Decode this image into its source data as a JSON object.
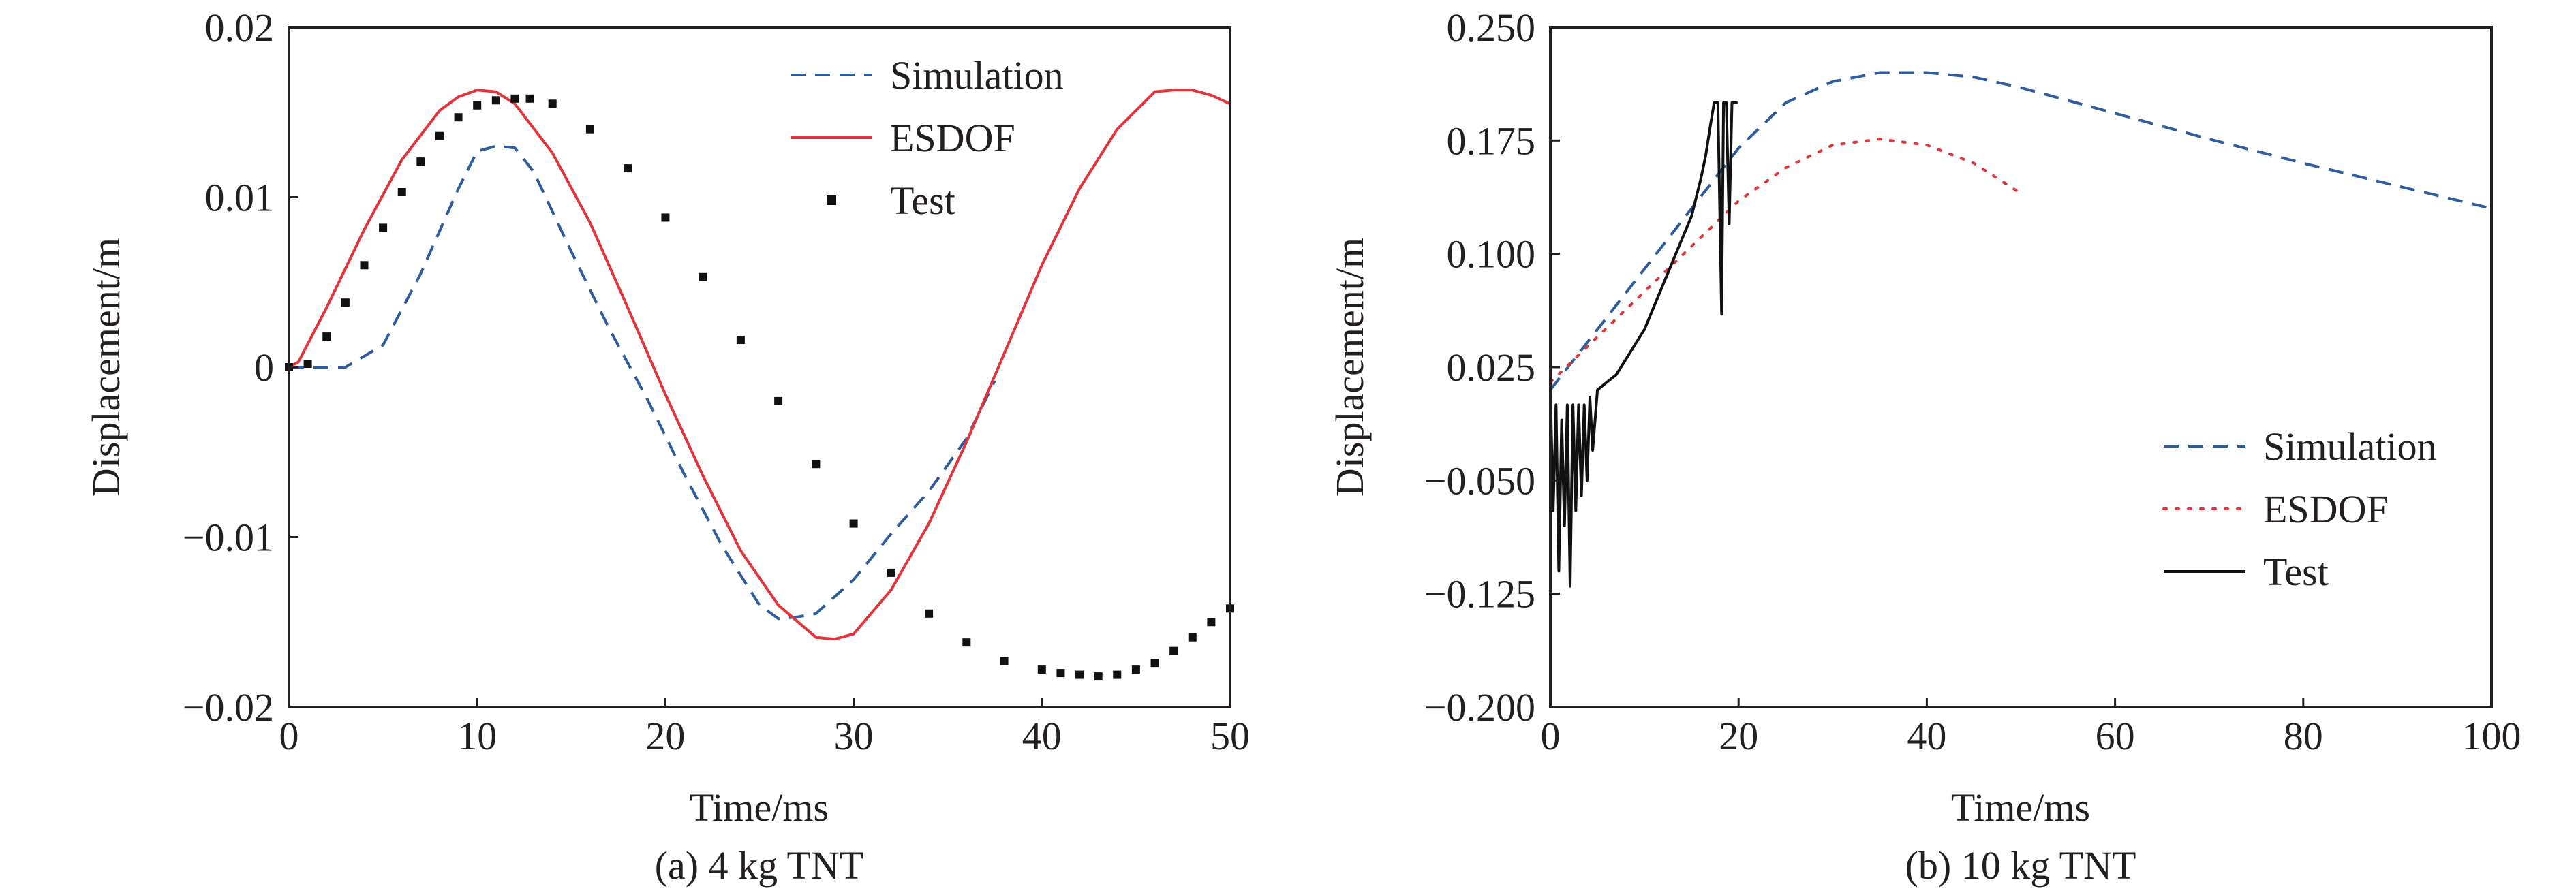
{
  "chart_data": [
    {
      "type": "line",
      "caption": "(a) 4 kg TNT",
      "xlabel": "Time/ms",
      "ylabel": "Displacement/m",
      "xlim": [
        0,
        50
      ],
      "ylim": [
        -0.02,
        0.02
      ],
      "xticks": [
        0,
        10,
        20,
        30,
        40,
        50
      ],
      "yticks": [
        -0.02,
        -0.01,
        0,
        0.01,
        0.02
      ],
      "xtick_labels": [
        "0",
        "10",
        "20",
        "30",
        "40",
        "50"
      ],
      "ytick_labels": [
        "−0.02",
        "−0.01",
        "0",
        "0.01",
        "0.02"
      ],
      "grid": false,
      "legend_position": "top-right",
      "series": [
        {
          "name": "Simulation",
          "style": "dashed",
          "color": "#2e5c9e",
          "x": [
            0,
            3,
            5,
            7,
            9,
            10,
            11,
            12,
            13,
            15,
            17,
            19,
            21,
            23,
            25,
            26,
            27,
            28,
            30,
            32,
            34,
            36,
            37.5
          ],
          "y": [
            0,
            0,
            0.0013,
            0.0055,
            0.0105,
            0.0127,
            0.013,
            0.0129,
            0.0115,
            0.0068,
            0.0023,
            -0.0018,
            -0.0063,
            -0.0105,
            -0.014,
            -0.0148,
            -0.0147,
            -0.0145,
            -0.0125,
            -0.0098,
            -0.0073,
            -0.0042,
            -0.0008
          ]
        },
        {
          "name": "ESDOF",
          "style": "solid",
          "color": "#e2343a",
          "x": [
            0,
            0.5,
            2,
            4,
            6,
            8,
            9,
            10,
            11,
            12,
            14,
            16,
            18,
            20,
            22,
            24,
            26,
            28,
            29,
            30,
            32,
            34,
            36,
            38,
            40,
            42,
            44,
            46,
            47,
            48,
            49,
            50
          ],
          "y": [
            0,
            0.0003,
            0.0035,
            0.0081,
            0.0122,
            0.0151,
            0.0159,
            0.0163,
            0.0162,
            0.0155,
            0.0126,
            0.0085,
            0.0035,
            -0.0016,
            -0.0064,
            -0.0108,
            -0.014,
            -0.0159,
            -0.016,
            -0.0157,
            -0.0131,
            -0.0092,
            -0.0044,
            0.0008,
            0.006,
            0.0105,
            0.014,
            0.0162,
            0.0163,
            0.0163,
            0.016,
            0.0155
          ]
        },
        {
          "name": "Test",
          "style": "markers",
          "color": "#111111",
          "x": [
            0,
            1,
            2,
            3,
            4,
            5,
            6,
            7,
            8,
            9,
            10,
            11,
            12,
            12.8,
            14,
            16,
            18,
            20,
            22,
            24,
            26,
            28,
            30,
            32,
            34,
            36,
            38,
            40,
            41,
            42,
            43,
            44,
            45,
            46,
            47,
            48,
            49,
            50
          ],
          "y": [
            0,
            0.0002,
            0.0018,
            0.0038,
            0.006,
            0.0082,
            0.0103,
            0.0121,
            0.0136,
            0.0147,
            0.0154,
            0.0157,
            0.0158,
            0.0158,
            0.0155,
            0.014,
            0.0117,
            0.0088,
            0.0053,
            0.0016,
            -0.002,
            -0.0057,
            -0.0092,
            -0.0121,
            -0.0145,
            -0.0162,
            -0.0173,
            -0.0178,
            -0.018,
            -0.0181,
            -0.0182,
            -0.0181,
            -0.0178,
            -0.0174,
            -0.0167,
            -0.0159,
            -0.015,
            -0.0142
          ]
        }
      ]
    },
    {
      "type": "line",
      "caption": "(b) 10 kg TNT",
      "xlabel": "Time/ms",
      "ylabel": "Displacement/m",
      "xlim": [
        0,
        100
      ],
      "ylim": [
        -0.2,
        0.25
      ],
      "xticks": [
        0,
        20,
        40,
        60,
        80,
        100
      ],
      "yticks": [
        -0.2,
        -0.125,
        -0.05,
        0.025,
        0.1,
        0.175,
        0.25
      ],
      "xtick_labels": [
        "0",
        "20",
        "40",
        "60",
        "80",
        "100"
      ],
      "ytick_labels": [
        "−0.200",
        "−0.125",
        "−0.050",
        "0.025",
        "0.100",
        "0.175",
        "0.250"
      ],
      "grid": false,
      "legend_position": "bottom-right",
      "series": [
        {
          "name": "Simulation",
          "style": "dashed",
          "color": "#2e5c9e",
          "x": [
            0,
            5,
            10,
            15,
            20,
            25,
            30,
            35,
            40,
            45,
            50,
            60,
            70,
            80,
            90,
            100
          ],
          "y": [
            0.01,
            0.05,
            0.09,
            0.13,
            0.17,
            0.2,
            0.214,
            0.22,
            0.22,
            0.217,
            0.21,
            0.193,
            0.176,
            0.16,
            0.145,
            0.13
          ]
        },
        {
          "name": "ESDOF",
          "style": "dotted",
          "color": "#e2343a",
          "x": [
            0,
            5,
            10,
            15,
            20,
            25,
            30,
            35,
            40,
            45,
            50
          ],
          "y": [
            0.015,
            0.045,
            0.075,
            0.105,
            0.135,
            0.157,
            0.172,
            0.176,
            0.172,
            0.16,
            0.14
          ]
        },
        {
          "name": "Test",
          "style": "solid",
          "color": "#111111",
          "x": [
            0,
            0.3,
            0.6,
            0.9,
            1.2,
            1.5,
            1.8,
            2.1,
            2.4,
            2.7,
            3.0,
            3.3,
            3.6,
            3.9,
            4.2,
            4.5,
            5,
            6,
            7,
            8,
            9,
            10,
            11,
            12,
            13,
            14,
            15,
            16,
            16.5,
            17,
            17.4,
            17.8,
            18.2,
            18.4,
            18.7,
            19.0,
            19.3,
            19.6,
            19.9
          ],
          "y": [
            0.01,
            -0.07,
            0.0,
            -0.11,
            -0.01,
            -0.08,
            0.0,
            -0.12,
            0.0,
            -0.07,
            0.0,
            -0.06,
            0.0,
            -0.05,
            0.005,
            -0.03,
            0.01,
            0.015,
            0.02,
            0.03,
            0.04,
            0.05,
            0.065,
            0.08,
            0.095,
            0.11,
            0.125,
            0.15,
            0.165,
            0.185,
            0.2,
            0.2,
            0.06,
            0.2,
            0.2,
            0.12,
            0.2,
            0.2,
            0.2
          ]
        }
      ]
    }
  ]
}
